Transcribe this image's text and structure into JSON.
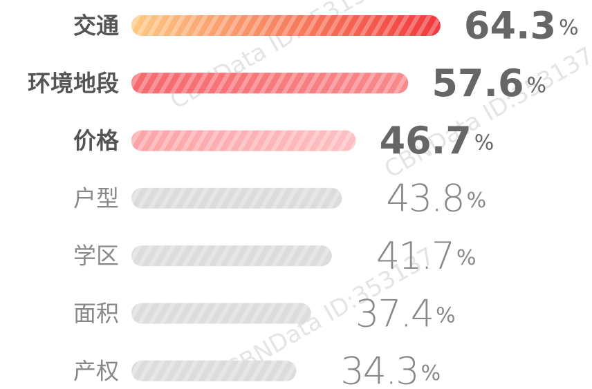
{
  "chart_data": {
    "type": "bar",
    "orientation": "horizontal",
    "categories": [
      "交通",
      "环境地段",
      "价格",
      "户型",
      "学区",
      "面积",
      "产权"
    ],
    "values": [
      64.3,
      57.6,
      46.7,
      43.8,
      41.7,
      37.4,
      34.3
    ],
    "value_labels": [
      "64.3%",
      "57.6%",
      "46.7%",
      "43.8%",
      "41.7%",
      "37.4%",
      "34.3%"
    ],
    "colors": [
      [
        "#fdc983",
        "#f0393d"
      ],
      [
        "#f5696e",
        "#f88a8d"
      ],
      [
        "#fba3a7",
        "#fcc0c2"
      ],
      [
        "#dcdcdc",
        "#dcdcdc"
      ],
      [
        "#dcdcdc",
        "#dcdcdc"
      ],
      [
        "#dcdcdc",
        "#dcdcdc"
      ],
      [
        "#dcdcdc",
        "#dcdcdc"
      ]
    ],
    "highlight_count": 3,
    "watermark": "CBNData ID:353137"
  }
}
